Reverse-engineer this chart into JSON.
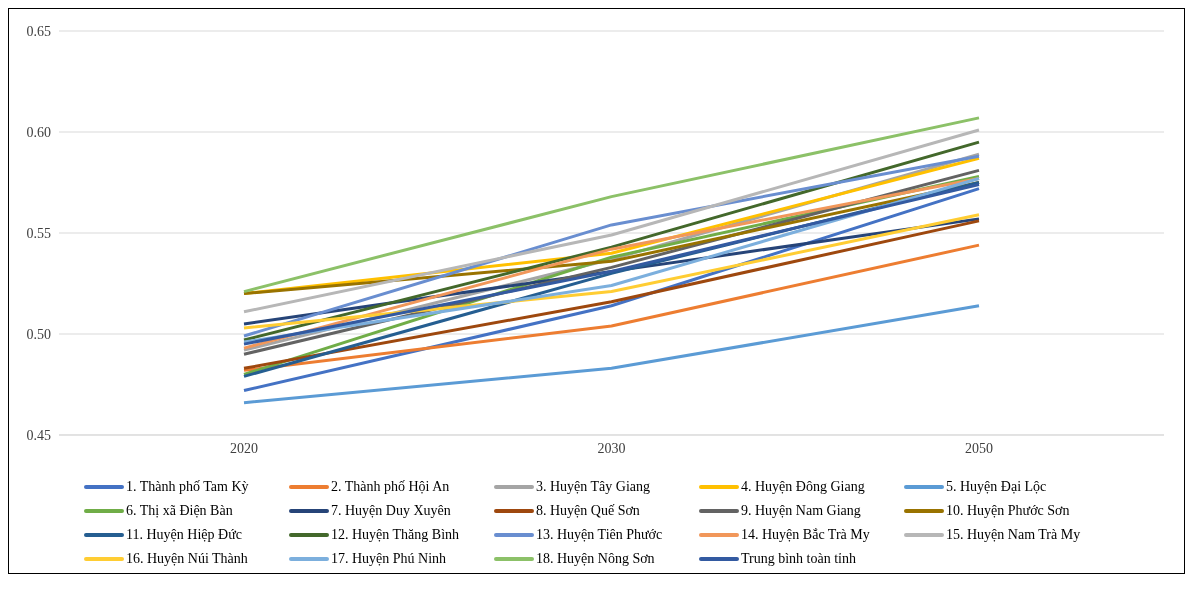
{
  "chart_data": {
    "type": "line",
    "categories": [
      "2020",
      "2030",
      "2050"
    ],
    "ylim": [
      0.45,
      0.65
    ],
    "yticks": [
      {
        "value": 0.45,
        "label": "0.45"
      },
      {
        "value": 0.5,
        "label": "0.50"
      },
      {
        "value": 0.55,
        "label": "0.55"
      },
      {
        "value": 0.6,
        "label": "0.60"
      },
      {
        "value": 0.65,
        "label": "0.65"
      }
    ],
    "grid": "y",
    "legend": "bottom",
    "marker": "none",
    "line_style": "solid",
    "series": [
      {
        "name": "1. Thành phố Tam Kỳ",
        "color": "#4472c4",
        "values": [
          0.472,
          0.514,
          0.572
        ]
      },
      {
        "name": "2. Thành phố Hội An",
        "color": "#ed7d31",
        "values": [
          0.482,
          0.504,
          0.544
        ]
      },
      {
        "name": "3. Huyện Tây Giang",
        "color": "#a5a5a5",
        "values": [
          0.492,
          0.537,
          0.589
        ]
      },
      {
        "name": "4. Huyện Đông Giang",
        "color": "#ffc000",
        "values": [
          0.52,
          0.54,
          0.587
        ]
      },
      {
        "name": "5. Huyện Đại Lộc",
        "color": "#5b9bd5",
        "values": [
          0.466,
          0.483,
          0.514
        ]
      },
      {
        "name": "6. Thị xã Điện Bàn",
        "color": "#70ad47",
        "values": [
          0.48,
          0.538,
          0.578
        ]
      },
      {
        "name": "7. Huyện Duy Xuyên",
        "color": "#264478",
        "values": [
          0.505,
          0.531,
          0.557
        ]
      },
      {
        "name": "8. Huyện Quế Sơn",
        "color": "#9e480e",
        "values": [
          0.483,
          0.516,
          0.556
        ]
      },
      {
        "name": "9. Huyện Nam Giang",
        "color": "#636363",
        "values": [
          0.49,
          0.533,
          0.581
        ]
      },
      {
        "name": "10. Huyện Phước Sơn",
        "color": "#997300",
        "values": [
          0.52,
          0.536,
          0.575
        ]
      },
      {
        "name": "11. Huyện Hiệp Đức",
        "color": "#255e91",
        "values": [
          0.479,
          0.53,
          0.575
        ]
      },
      {
        "name": "12. Huyện Thăng Bình",
        "color": "#43682b",
        "values": [
          0.497,
          0.543,
          0.595
        ]
      },
      {
        "name": "13. Huyện Tiên Phước",
        "color": "#698ed0",
        "values": [
          0.499,
          0.554,
          0.588
        ]
      },
      {
        "name": "14. Huyện Bắc Trà My",
        "color": "#f1975a",
        "values": [
          0.493,
          0.542,
          0.577
        ]
      },
      {
        "name": "15. Huyện Nam Trà My",
        "color": "#b7b7b7",
        "values": [
          0.511,
          0.549,
          0.601
        ]
      },
      {
        "name": "16. Huyện Núi Thành",
        "color": "#ffcd33",
        "values": [
          0.503,
          0.521,
          0.559
        ]
      },
      {
        "name": "17. Huyện Phú Ninh",
        "color": "#7cafdd",
        "values": [
          0.496,
          0.524,
          0.577
        ]
      },
      {
        "name": "18. Huyện Nông Sơn",
        "color": "#8cc168",
        "values": [
          0.521,
          0.568,
          0.607
        ]
      },
      {
        "name": "Trung bình toàn tỉnh",
        "color": "#335aa1",
        "values": [
          0.495,
          0.531,
          0.574
        ]
      }
    ]
  }
}
